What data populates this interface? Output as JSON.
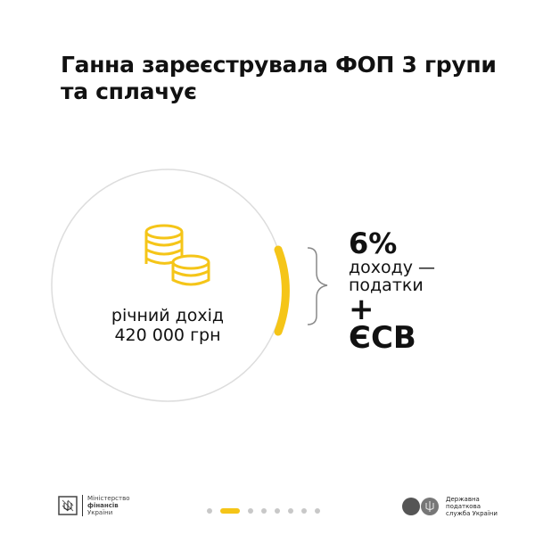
{
  "title": {
    "line1": "Ганна зареєструвала ФОП 3 групи",
    "line2": "та сплачує"
  },
  "income": {
    "label": "річний дохід",
    "amount": "420 000 грн",
    "icon": "coins-icon"
  },
  "result": {
    "percent": "6%",
    "desc_line1": "доходу —",
    "desc_line2": "податки",
    "plus": "+",
    "esv": "ЄСВ"
  },
  "footer": {
    "minfin": {
      "line1": "Міністерство",
      "line2": "фінансів",
      "line3": "України"
    },
    "dps": {
      "line1": "Державна",
      "line2": "податкова",
      "line3": "служба України"
    },
    "pagination": {
      "total": 8,
      "active": 2
    }
  },
  "colors": {
    "accent": "#f5c518",
    "text": "#111111",
    "circle": "#dddddd"
  }
}
